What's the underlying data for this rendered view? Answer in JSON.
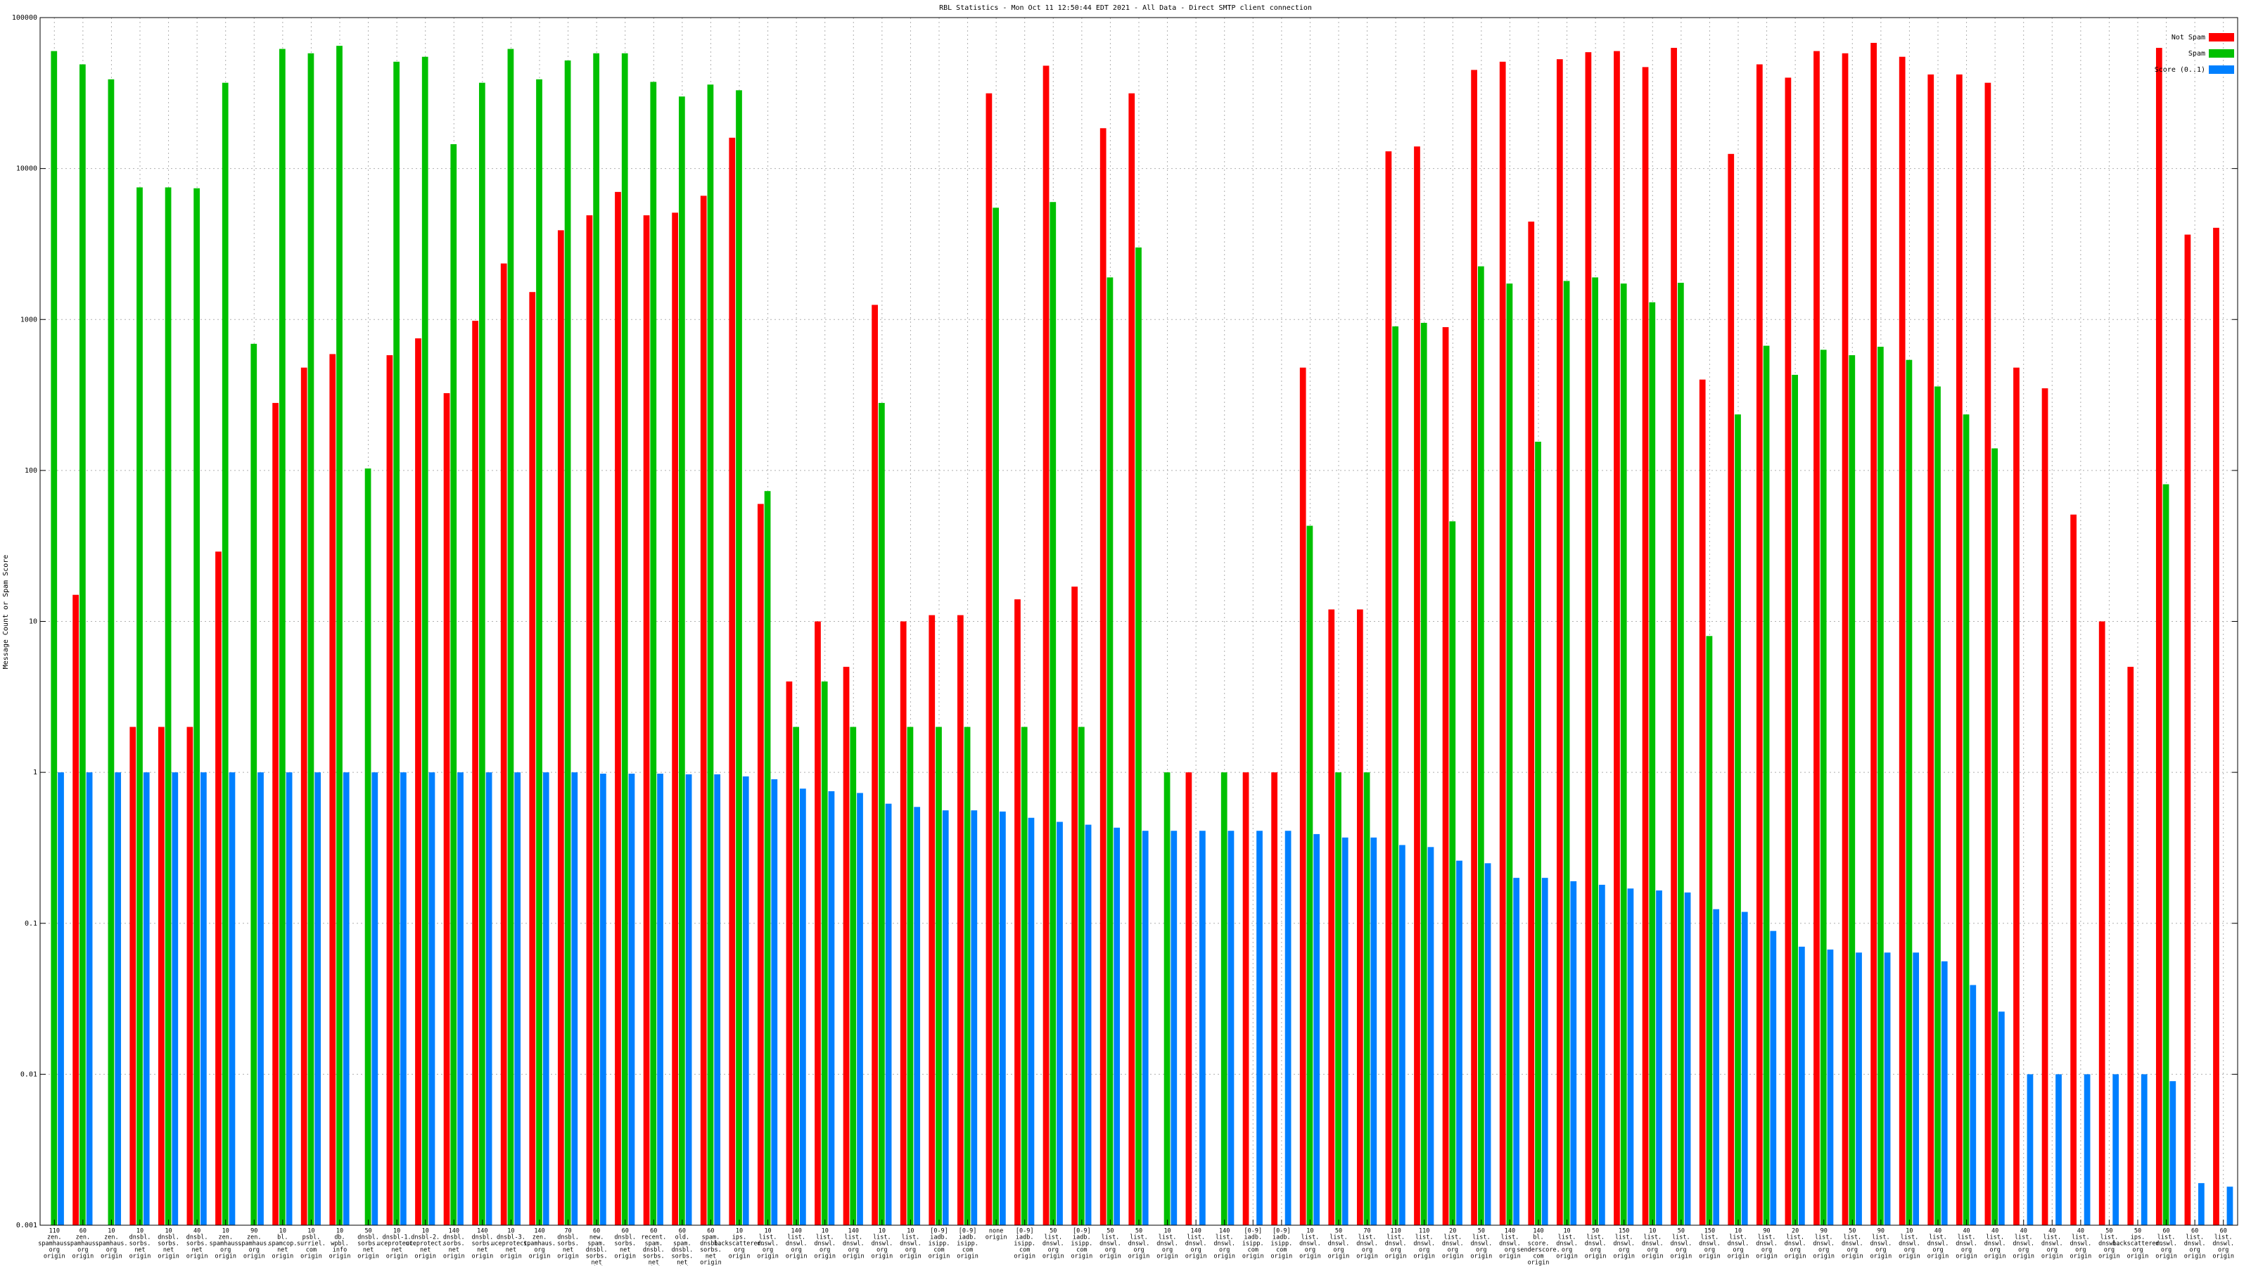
{
  "chart_data": {
    "type": "bar",
    "title": "RBL Statistics - Mon Oct 11 12:50:44 EDT 2021 - All Data - Direct SMTP client connection",
    "y_label": "Message Count or Spam Score",
    "log_scale": true,
    "grid": true,
    "legend": "top-right",
    "ylim": [
      0.001,
      100000
    ],
    "yticks": [
      0.001,
      0.01,
      0.1,
      1,
      10,
      100,
      1000,
      10000,
      100000
    ],
    "categories": [
      [
        "110",
        "zen.",
        "spamhaus.",
        "org",
        "origin"
      ],
      [
        "60",
        "zen.",
        "spamhaus.",
        "org",
        "origin"
      ],
      [
        "10",
        "zen.",
        "spamhaus.",
        "org",
        "origin"
      ],
      [
        "10",
        "dnsbl.",
        "sorbs.",
        "net",
        "origin"
      ],
      [
        "10",
        "dnsbl.",
        "sorbs.",
        "net",
        "origin"
      ],
      [
        "40",
        "dnsbl.",
        "sorbs.",
        "net",
        "origin"
      ],
      [
        "10",
        "zen.",
        "spamhaus.",
        "org",
        "origin"
      ],
      [
        "90",
        "zen.",
        "spamhaus.",
        "org",
        "origin"
      ],
      [
        "10",
        "bl.",
        "spamcop.",
        "net",
        "origin"
      ],
      [
        "10",
        "psbl.",
        "surriel.",
        "com",
        "origin"
      ],
      [
        "10",
        "db.",
        "wpbl.",
        "info",
        "origin"
      ],
      [
        "50",
        "dnsbl.",
        "sorbs.",
        "net",
        "origin"
      ],
      [
        "10",
        "dnsbl-1.",
        "uceprotect.",
        "net",
        "origin"
      ],
      [
        "10",
        "dnsbl-2.",
        "uceprotect.",
        "net",
        "origin"
      ],
      [
        "140",
        "dnsbl.",
        "sorbs.",
        "net",
        "origin"
      ],
      [
        "140",
        "dnsbl.",
        "sorbs.",
        "net",
        "origin"
      ],
      [
        "10",
        "dnsbl-3.",
        "uceprotect.",
        "net",
        "origin"
      ],
      [
        "140",
        "zen.",
        "spamhaus.",
        "org",
        "origin"
      ],
      [
        "70",
        "dnsbl.",
        "sorbs.",
        "net",
        "origin"
      ],
      [
        "60",
        "new.",
        "spam.",
        "dnsbl.",
        "sorbs.",
        "net",
        "origin"
      ],
      [
        "60",
        "dnsbl.",
        "sorbs.",
        "net",
        "origin"
      ],
      [
        "60",
        "recent.",
        "spam.",
        "dnsbl.",
        "sorbs.",
        "net",
        "origin"
      ],
      [
        "60",
        "old.",
        "spam.",
        "dnsbl.",
        "sorbs.",
        "net",
        "origin"
      ],
      [
        "60",
        "spam.",
        "dnsbl.",
        "sorbs.",
        "net",
        "origin"
      ],
      [
        "10",
        "ips.",
        "backscatterer.",
        "org",
        "origin"
      ],
      [
        "10",
        "list.",
        "dnswl.",
        "org",
        "origin"
      ],
      [
        "140",
        "list.",
        "dnswl.",
        "org",
        "origin"
      ],
      [
        "10",
        "list.",
        "dnswl.",
        "org",
        "origin"
      ],
      [
        "140",
        "list.",
        "dnswl.",
        "org",
        "origin"
      ],
      [
        "10",
        "list.",
        "dnswl.",
        "org",
        "origin"
      ],
      [
        "10",
        "list.",
        "dnswl.",
        "org",
        "origin"
      ],
      [
        "[0-9]",
        "iadb.",
        "isipp.",
        "com",
        "origin"
      ],
      [
        "[0-9]",
        "iadb.",
        "isipp.",
        "com",
        "origin"
      ],
      [
        "none",
        "origin"
      ],
      [
        "[0-9]",
        "iadb.",
        "isipp.",
        "com",
        "origin"
      ],
      [
        "50",
        "list.",
        "dnswl.",
        "org",
        "origin"
      ],
      [
        "[0-9]",
        "iadb.",
        "isipp.",
        "com",
        "origin"
      ],
      [
        "50",
        "list.",
        "dnswl.",
        "org",
        "origin"
      ],
      [
        "50",
        "list.",
        "dnswl.",
        "org",
        "origin"
      ],
      [
        "10",
        "list.",
        "dnswl.",
        "org",
        "origin"
      ],
      [
        "140",
        "list.",
        "dnswl.",
        "org",
        "origin"
      ],
      [
        "140",
        "list.",
        "dnswl.",
        "org",
        "origin"
      ],
      [
        "[0-9]",
        "iadb.",
        "isipp.",
        "com",
        "origin"
      ],
      [
        "[0-9]",
        "iadb.",
        "isipp.",
        "com",
        "origin"
      ],
      [
        "10",
        "list.",
        "dnswl.",
        "org",
        "origin"
      ],
      [
        "50",
        "list.",
        "dnswl.",
        "org",
        "origin"
      ],
      [
        "70",
        "list.",
        "dnswl.",
        "org",
        "origin"
      ],
      [
        "110",
        "list.",
        "dnswl.",
        "org",
        "origin"
      ],
      [
        "110",
        "list.",
        "dnswl.",
        "org",
        "origin"
      ],
      [
        "20",
        "list.",
        "dnswl.",
        "org",
        "origin"
      ],
      [
        "50",
        "list.",
        "dnswl.",
        "org",
        "origin"
      ],
      [
        "140",
        "list.",
        "dnswl.",
        "org",
        "origin"
      ],
      [
        "140",
        "bl.",
        "score.",
        "senderscore.",
        "com",
        "origin"
      ],
      [
        "10",
        "list.",
        "dnswl.",
        "org",
        "origin"
      ],
      [
        "50",
        "list.",
        "dnswl.",
        "org",
        "origin"
      ],
      [
        "150",
        "list.",
        "dnswl.",
        "org",
        "origin"
      ],
      [
        "10",
        "list.",
        "dnswl.",
        "org",
        "origin"
      ],
      [
        "50",
        "list.",
        "dnswl.",
        "org",
        "origin"
      ],
      [
        "150",
        "list.",
        "dnswl.",
        "org",
        "origin"
      ],
      [
        "10",
        "list.",
        "dnswl.",
        "org",
        "origin"
      ],
      [
        "90",
        "list.",
        "dnswl.",
        "org",
        "origin"
      ],
      [
        "20",
        "list.",
        "dnswl.",
        "org",
        "origin"
      ],
      [
        "90",
        "list.",
        "dnswl.",
        "org",
        "origin"
      ],
      [
        "50",
        "list.",
        "dnswl.",
        "org",
        "origin"
      ],
      [
        "90",
        "list.",
        "dnswl.",
        "org",
        "origin"
      ],
      [
        "10",
        "list.",
        "dnswl.",
        "org",
        "origin"
      ],
      [
        "40",
        "list.",
        "dnswl.",
        "org",
        "origin"
      ],
      [
        "40",
        "list.",
        "dnswl.",
        "org",
        "origin"
      ],
      [
        "40",
        "list.",
        "dnswl.",
        "org",
        "origin"
      ],
      [
        "40",
        "list.",
        "dnswl.",
        "org",
        "origin"
      ],
      [
        "40",
        "list.",
        "dnswl.",
        "org",
        "origin"
      ],
      [
        "40",
        "list.",
        "dnswl.",
        "org",
        "origin"
      ],
      [
        "50",
        "list.",
        "dnswl.",
        "org",
        "origin"
      ],
      [
        "50",
        "ips.",
        "backscatterer.",
        "org",
        "origin"
      ],
      [
        "60",
        "list.",
        "dnswl.",
        "org",
        "origin"
      ],
      [
        "60",
        "list.",
        "dnswl.",
        "org",
        "origin"
      ],
      [
        "60",
        "list.",
        "dnswl.",
        "org",
        "origin"
      ]
    ],
    "series": [
      {
        "name": "Not Spam",
        "color": "#ff0000",
        "values": [
          null,
          15,
          null,
          2,
          2,
          2,
          29,
          null,
          280,
          480,
          590,
          null,
          580,
          750,
          325,
          980,
          2350,
          1520,
          3900,
          4900,
          7000,
          4900,
          5100,
          6600,
          16000,
          60,
          4,
          10,
          5,
          1250,
          10,
          11,
          11,
          31500,
          14,
          48000,
          17,
          18500,
          31500,
          null,
          1,
          null,
          1,
          1,
          480,
          12,
          12,
          13000,
          14000,
          890,
          45000,
          51000,
          4450,
          53000,
          59000,
          60000,
          47000,
          63000,
          400,
          12500,
          49000,
          40000,
          60000,
          58000,
          68000,
          55000,
          42000,
          42000,
          37000,
          480,
          350,
          51,
          10,
          5,
          63000,
          3650,
          4050
        ]
      },
      {
        "name": "Spam",
        "color": "#00c000",
        "values": [
          60000,
          49000,
          39000,
          7500,
          7500,
          7400,
          37000,
          690,
          62000,
          58000,
          65000,
          103,
          51000,
          55000,
          14500,
          37000,
          62000,
          39000,
          52000,
          58000,
          58000,
          37500,
          30000,
          36000,
          33000,
          73,
          2,
          4,
          2,
          280,
          2,
          2,
          2,
          5500,
          2,
          6000,
          2,
          1900,
          3000,
          1,
          null,
          1,
          null,
          null,
          43,
          1,
          1,
          900,
          950,
          46,
          2250,
          1730,
          155,
          1800,
          1900,
          1730,
          1300,
          1750,
          8,
          235,
          670,
          430,
          630,
          580,
          660,
          540,
          360,
          235,
          140,
          null,
          null,
          null,
          null,
          null,
          81,
          null,
          null
        ]
      },
      {
        "name": "Score (0..1)",
        "color": "#0080ff",
        "values": [
          1,
          1,
          1,
          1,
          1,
          1,
          1,
          1,
          1,
          1,
          1,
          1,
          1,
          1,
          1,
          1,
          1,
          1,
          1,
          0.98,
          0.98,
          0.98,
          0.97,
          0.97,
          0.94,
          0.9,
          0.78,
          0.75,
          0.73,
          0.62,
          0.59,
          0.56,
          0.56,
          0.55,
          0.5,
          0.47,
          0.45,
          0.43,
          0.41,
          0.41,
          0.41,
          0.41,
          0.41,
          0.41,
          0.39,
          0.37,
          0.37,
          0.33,
          0.32,
          0.26,
          0.25,
          0.2,
          0.2,
          0.19,
          0.18,
          0.17,
          0.165,
          0.16,
          0.124,
          0.119,
          0.089,
          0.07,
          0.067,
          0.064,
          0.064,
          0.064,
          0.056,
          0.039,
          0.026,
          0.01,
          0.01,
          0.01,
          0.01,
          0.01,
          0.009,
          0.0019,
          0.0018
        ]
      }
    ]
  }
}
